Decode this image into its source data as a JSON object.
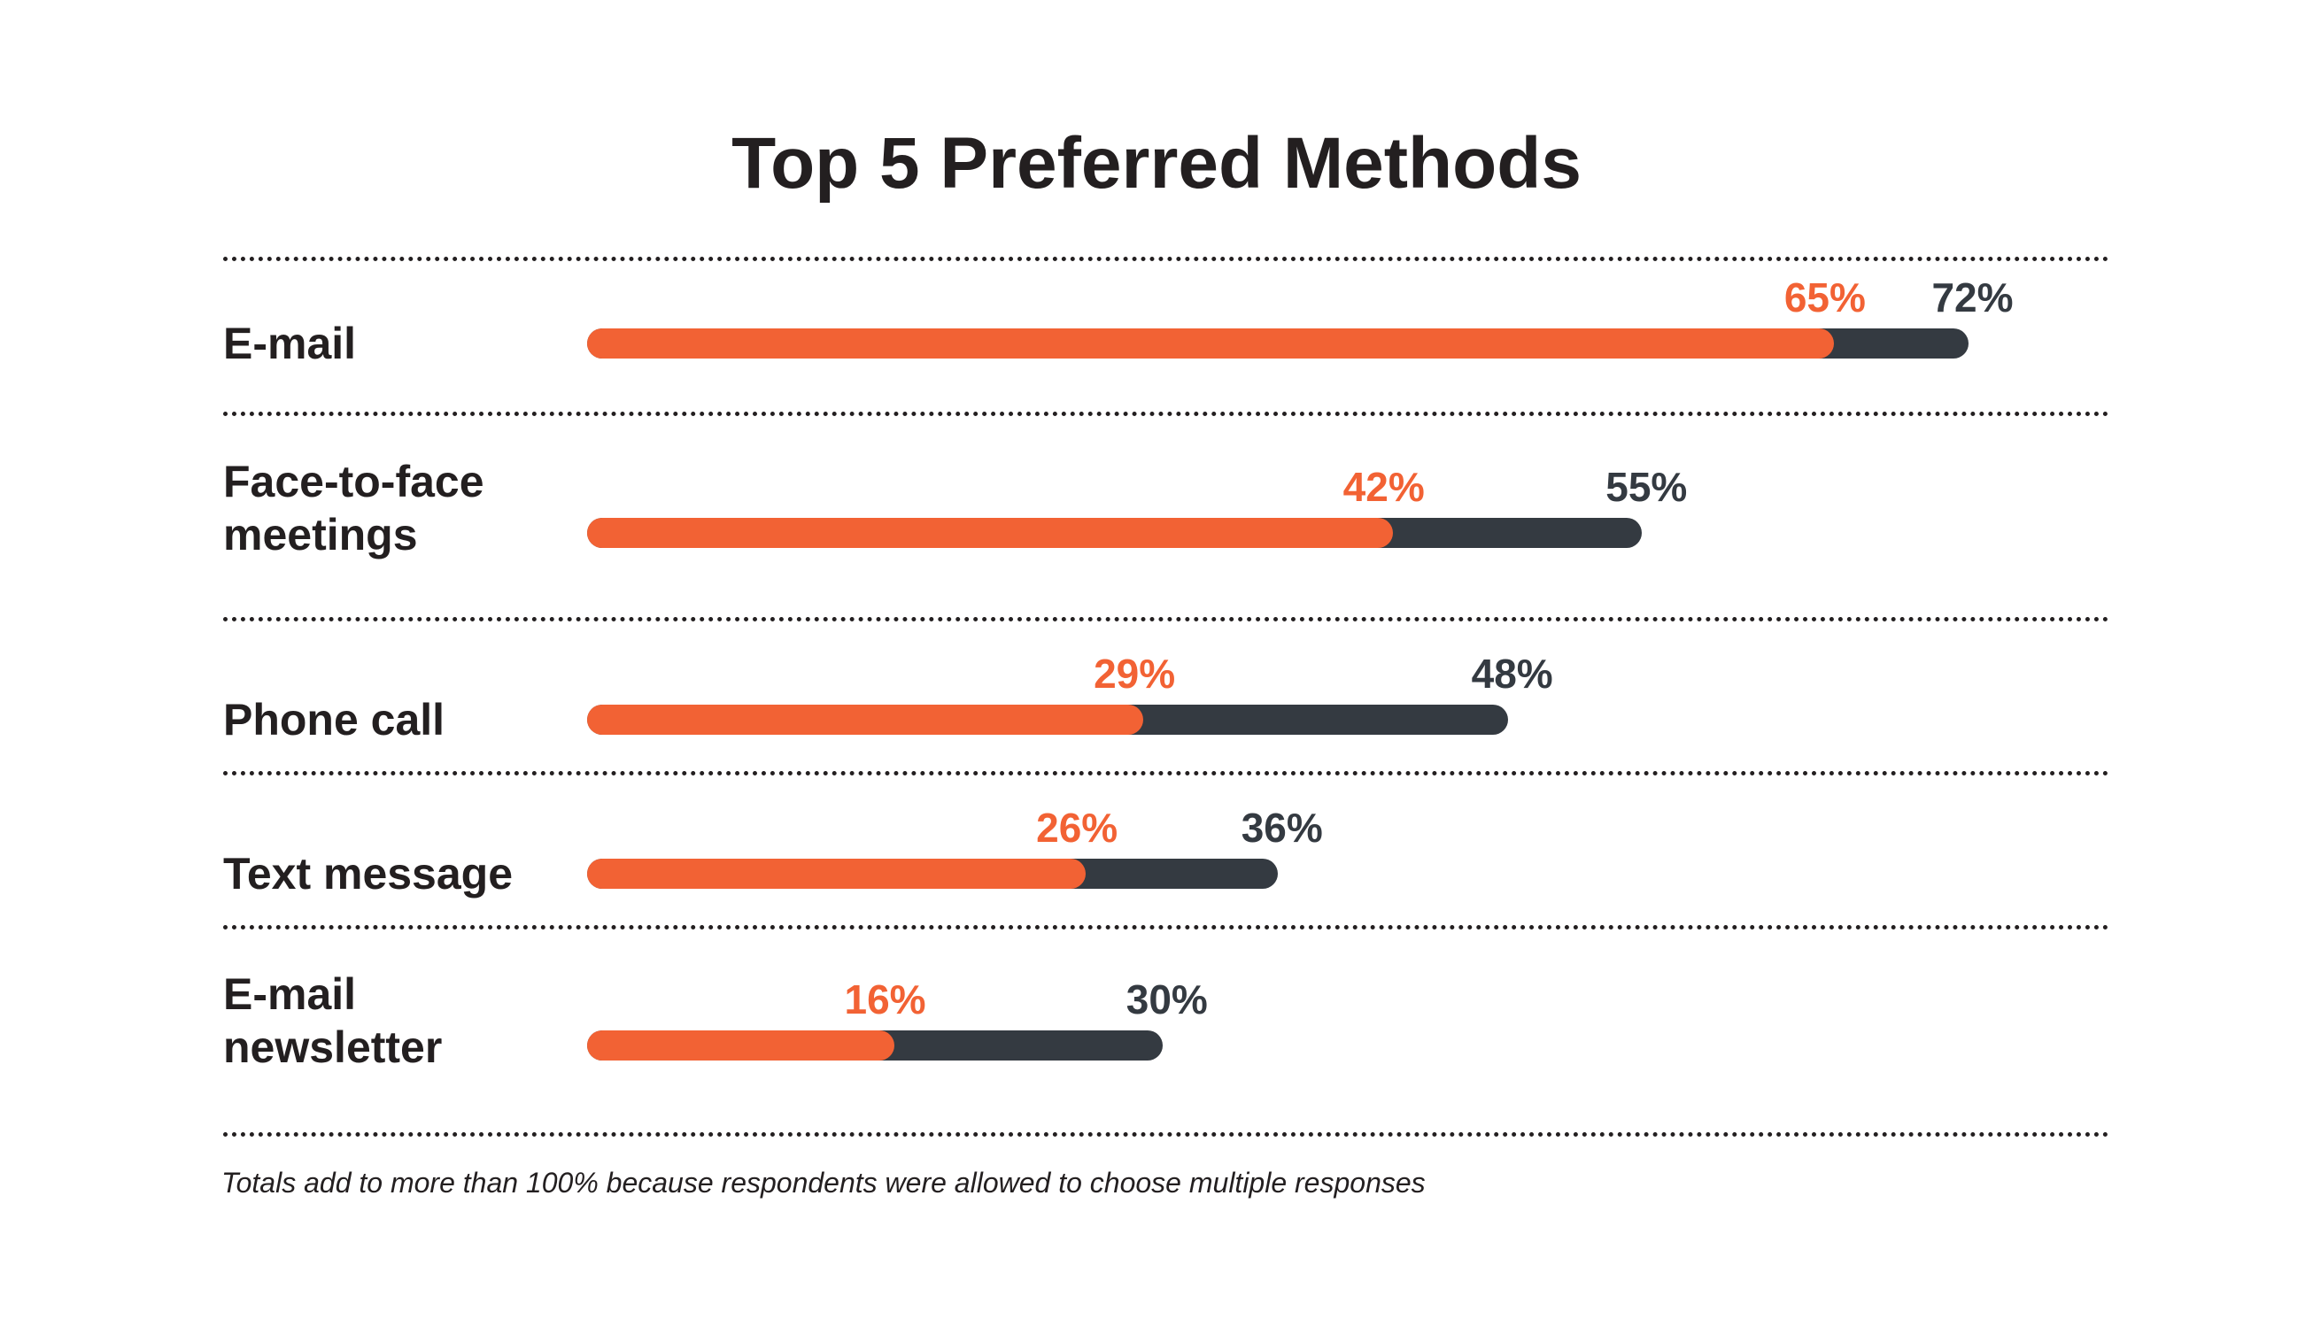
{
  "chart_data": {
    "type": "bar",
    "title": "Top 5 Preferred Methods",
    "categories": [
      "E-mail",
      "Face-to-face meetings",
      "Phone call",
      "Text message",
      "E-mail newsletter"
    ],
    "label_lines": [
      [
        "E-mail"
      ],
      [
        "Face-to-face",
        "meetings"
      ],
      [
        "Phone call"
      ],
      [
        "Text message"
      ],
      [
        "E-mail",
        "newsletter"
      ]
    ],
    "series": [
      {
        "values": [
          65,
          42,
          29,
          26,
          16
        ],
        "labels": [
          "65%",
          "42%",
          "29%",
          "26%",
          "16%"
        ],
        "color": "#f26234"
      },
      {
        "values": [
          72,
          55,
          48,
          36,
          30
        ],
        "labels": [
          "72%",
          "55%",
          "48%",
          "36%",
          "30%"
        ],
        "color": "#343a41"
      }
    ],
    "orientation": "horizontal",
    "overlaid": true,
    "grid": false,
    "legend": "none",
    "footnote": "Totals add to more than 100% because respondents were allowed to choose multiple responses"
  }
}
